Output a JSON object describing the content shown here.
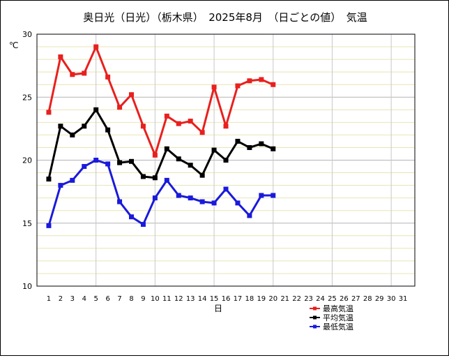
{
  "title": "奥日光（日光）（栃木県）　2025年8月　（日ごとの値）　気温",
  "chart_data": {
    "type": "line",
    "title": "奥日光（日光）（栃木県）　2025年8月　（日ごとの値）　気温",
    "xlabel": "日",
    "ylabel": "℃",
    "ylim": [
      10,
      30
    ],
    "yticks": [
      10,
      15,
      20,
      25,
      30
    ],
    "xlim": [
      0,
      32
    ],
    "xticks": [
      1,
      2,
      3,
      4,
      5,
      6,
      7,
      8,
      9,
      10,
      11,
      12,
      13,
      14,
      15,
      16,
      17,
      18,
      19,
      20,
      21,
      22,
      23,
      24,
      25,
      26,
      27,
      28,
      29,
      30,
      31
    ],
    "grid": true,
    "legend_position": "bottom-right",
    "series": [
      {
        "name": "最高気温",
        "color": "#e8201e",
        "values": [
          23.8,
          28.2,
          26.8,
          26.9,
          29.0,
          26.6,
          24.2,
          25.2,
          22.7,
          20.4,
          23.5,
          22.9,
          23.1,
          22.2,
          25.8,
          22.7,
          25.9,
          26.3,
          26.4,
          26.0
        ]
      },
      {
        "name": "平均気温",
        "color": "#000000",
        "values": [
          18.5,
          22.7,
          22.0,
          22.7,
          24.0,
          22.4,
          19.8,
          19.9,
          18.7,
          18.6,
          20.9,
          20.1,
          19.6,
          18.8,
          20.8,
          20.0,
          21.5,
          21.0,
          21.3,
          20.9
        ]
      },
      {
        "name": "最低気温",
        "color": "#1a1adc",
        "values": [
          14.8,
          18.0,
          18.4,
          19.5,
          20.0,
          19.7,
          16.7,
          15.5,
          14.9,
          17.0,
          18.4,
          17.2,
          17.0,
          16.7,
          16.6,
          17.7,
          16.6,
          15.6,
          17.2,
          17.2
        ]
      }
    ]
  }
}
